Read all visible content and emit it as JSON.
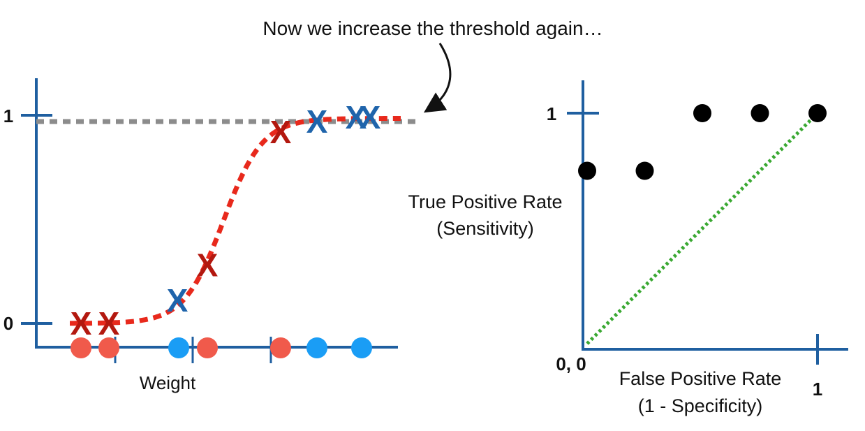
{
  "annotation": "Now we increase the threshold again…",
  "colors": {
    "axis": "#1f5fa0",
    "curve": "#e8291c",
    "threshold": "#8c8c8c",
    "obese_x": "#b3180f",
    "notobese_x": "#1f64ab",
    "red_dot": "#f05a4b",
    "blue_dot": "#1a9df5",
    "roc_point": "#000000",
    "diagonal": "#3aa832"
  },
  "chart_data": [
    {
      "type": "scatter",
      "xlabel": "Weight",
      "y_ticks": [
        "1",
        "0"
      ],
      "threshold_probability": 0.97,
      "points": [
        {
          "order": 1,
          "color": "red",
          "probability": 0.0
        },
        {
          "order": 2,
          "color": "red",
          "probability": 0.0
        },
        {
          "order": 3,
          "color": "blue",
          "probability": 0.11
        },
        {
          "order": 4,
          "color": "red",
          "probability": 0.28
        },
        {
          "order": 5,
          "color": "red",
          "probability": 0.92
        },
        {
          "order": 6,
          "color": "blue",
          "probability": 0.97
        },
        {
          "order": 7,
          "color": "blue",
          "probability": 0.99
        }
      ]
    },
    {
      "type": "scatter",
      "title": "",
      "xlabel": "False Positive Rate",
      "xlabel_sub": "(1 - Specificity)",
      "ylabel": "True Positive Rate",
      "ylabel_sub": "(Sensitivity)",
      "origin_label": "0, 0",
      "x_ticks": [
        "1"
      ],
      "y_ticks": [
        "1"
      ],
      "xlim": [
        0,
        1
      ],
      "ylim": [
        0,
        1
      ],
      "points": [
        {
          "x": 0.0,
          "y": 0.75
        },
        {
          "x": 0.25,
          "y": 0.75
        },
        {
          "x": 0.5,
          "y": 1.0
        },
        {
          "x": 0.75,
          "y": 1.0
        },
        {
          "x": 1.0,
          "y": 1.0
        }
      ],
      "diagonal": {
        "from": [
          0,
          0
        ],
        "to": [
          1,
          1
        ]
      }
    }
  ]
}
